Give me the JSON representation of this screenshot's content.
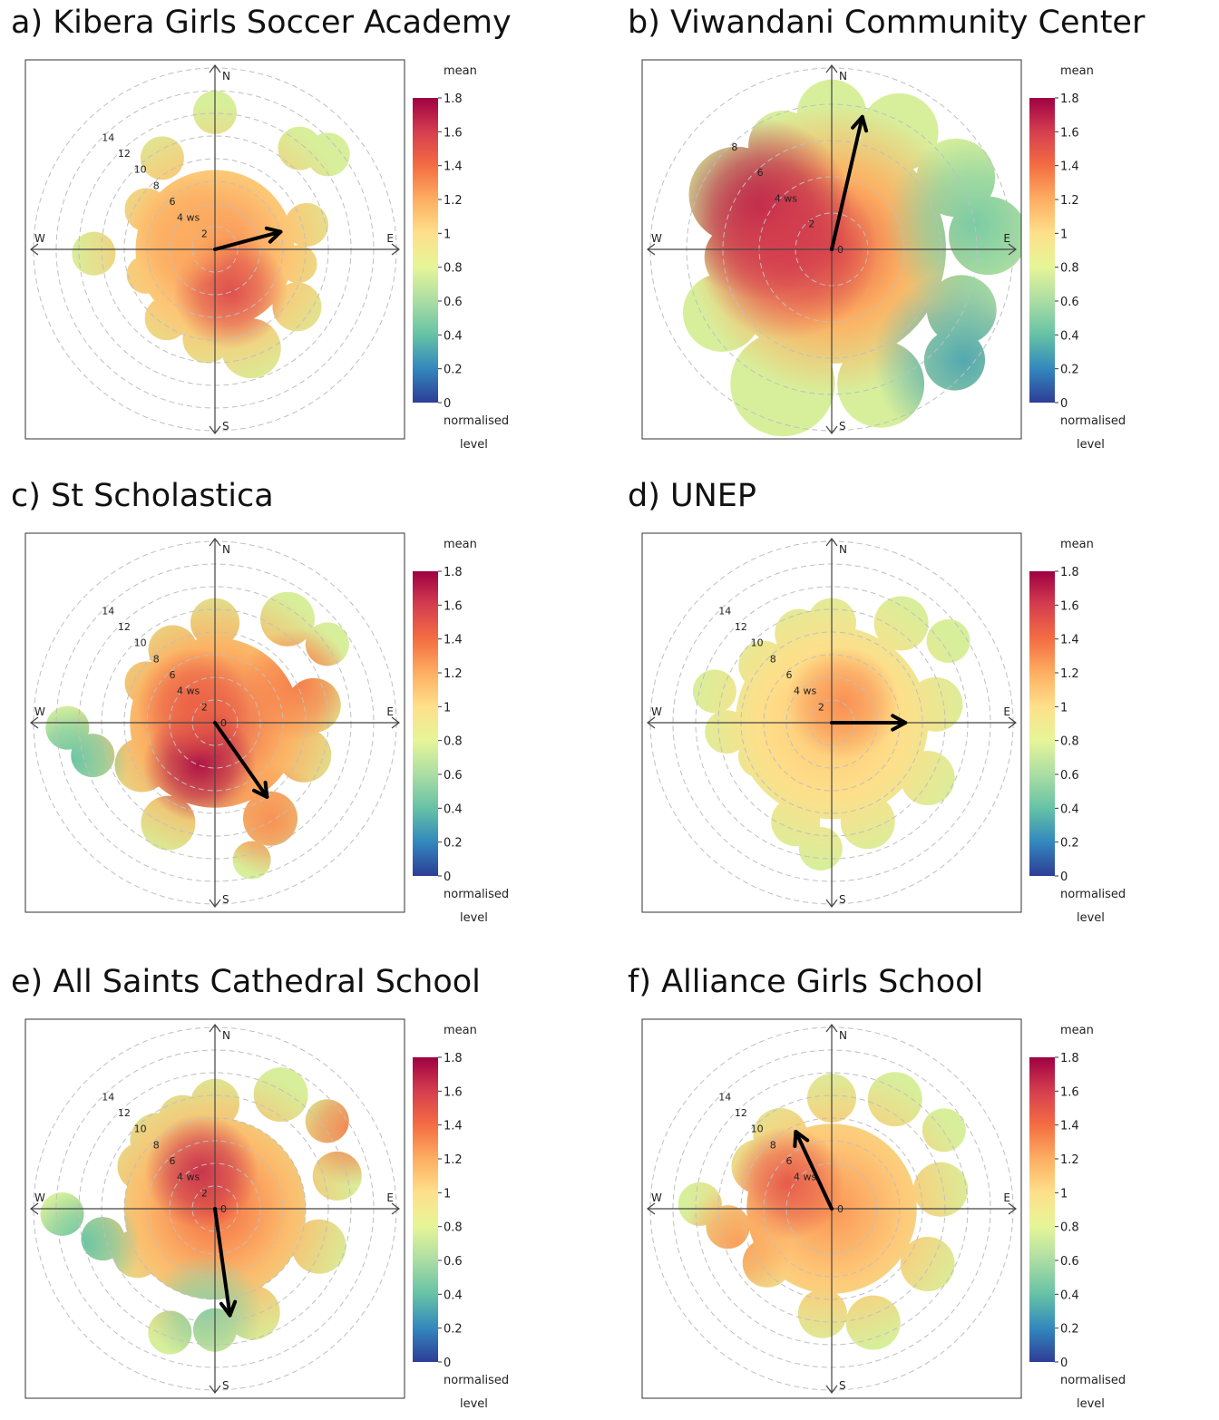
{
  "colors": {
    "scale": [
      "#2e3d96",
      "#3288bd",
      "#66c2a5",
      "#abdda4",
      "#e6f598",
      "#fee08b",
      "#fdae61",
      "#f46d43",
      "#d53e4f",
      "#9e0142"
    ],
    "arrow": "#000000",
    "grid": "#bfbfbf",
    "axis": "#444444"
  },
  "legend": {
    "top_label": "mean",
    "bottom_label_1": "normalised",
    "bottom_label_2": "level",
    "ticks": [
      "0",
      "0.2",
      "0.4",
      "0.6",
      "0.8",
      "1",
      "1.2",
      "1.4",
      "1.6",
      "1.8"
    ]
  },
  "compass": {
    "n": "N",
    "e": "E",
    "s": "S",
    "w": "W"
  },
  "chart_data": [
    {
      "type": "heatmap",
      "subtype": "polar-plot",
      "title": "a) Kibera Girls Soccer Academy",
      "colorbar": {
        "label": "mean",
        "sublabel": "normalised level",
        "range": [
          0,
          1.8
        ]
      },
      "radial_axis": {
        "label": "ws",
        "ticks": [
          2,
          4,
          6,
          8,
          10,
          12,
          14
        ],
        "max": 16
      },
      "mean_vector": {
        "direction_deg": 75,
        "speed": 6
      },
      "hotspots": [
        {
          "direction_deg": 160,
          "speed": 4,
          "value": 1.55
        },
        {
          "direction_deg": 300,
          "speed": 3,
          "value": 1.2
        }
      ]
    },
    {
      "type": "heatmap",
      "subtype": "polar-plot",
      "title": "b) Viwandani Community Center",
      "colorbar": {
        "label": "mean",
        "sublabel": "normalised level",
        "range": [
          0,
          1.8
        ]
      },
      "radial_axis": {
        "label": "ws",
        "ticks": [
          0,
          2,
          4,
          6,
          8
        ],
        "max": 10
      },
      "mean_vector": {
        "direction_deg": 13,
        "speed": 7.5
      },
      "hotspots": [
        {
          "direction_deg": 300,
          "speed": 4.5,
          "value": 1.75
        },
        {
          "direction_deg": 270,
          "speed": 2.5,
          "value": 1.6
        },
        {
          "direction_deg": 80,
          "speed": 8,
          "value": 0.45
        },
        {
          "direction_deg": 130,
          "speed": 9.5,
          "value": 0.3
        }
      ]
    },
    {
      "type": "heatmap",
      "subtype": "polar-plot",
      "title": "c) St Scholastica",
      "colorbar": {
        "label": "mean",
        "sublabel": "normalised level",
        "range": [
          0,
          1.8
        ]
      },
      "radial_axis": {
        "label": "ws",
        "ticks": [
          0,
          2,
          4,
          6,
          8,
          10,
          12,
          14
        ],
        "max": 16
      },
      "mean_vector": {
        "direction_deg": 145,
        "speed": 8
      },
      "hotspots": [
        {
          "direction_deg": 200,
          "speed": 4,
          "value": 1.75
        },
        {
          "direction_deg": 310,
          "speed": 2.5,
          "value": 1.45
        },
        {
          "direction_deg": 65,
          "speed": 8,
          "value": 1.35
        },
        {
          "direction_deg": 150,
          "speed": 10,
          "value": 1.3
        },
        {
          "direction_deg": 255,
          "speed": 13,
          "value": 0.4
        }
      ]
    },
    {
      "type": "heatmap",
      "subtype": "polar-plot",
      "title": "d) UNEP",
      "colorbar": {
        "label": "mean",
        "sublabel": "normalised level",
        "range": [
          0,
          1.8
        ]
      },
      "radial_axis": {
        "label": "ws",
        "ticks": [
          2,
          4,
          6,
          8,
          10,
          12,
          14
        ],
        "max": 16
      },
      "mean_vector": {
        "direction_deg": 90,
        "speed": 6.5
      },
      "hotspots": [
        {
          "direction_deg": 30,
          "speed": 2,
          "value": 1.3
        }
      ]
    },
    {
      "type": "heatmap",
      "subtype": "polar-plot",
      "title": "e) All Saints Cathedral School",
      "colorbar": {
        "label": "mean",
        "sublabel": "normalised level",
        "range": [
          0,
          1.8
        ]
      },
      "radial_axis": {
        "label": "ws",
        "ticks": [
          0,
          2,
          4,
          6,
          8,
          10,
          12,
          14
        ],
        "max": 16
      },
      "mean_vector": {
        "direction_deg": 172,
        "speed": 9.5
      },
      "hotspots": [
        {
          "direction_deg": 340,
          "speed": 3.5,
          "value": 1.65
        },
        {
          "direction_deg": 60,
          "speed": 14,
          "value": 1.35
        },
        {
          "direction_deg": 255,
          "speed": 12,
          "value": 0.4
        },
        {
          "direction_deg": 185,
          "speed": 9,
          "value": 0.5
        }
      ]
    },
    {
      "type": "heatmap",
      "subtype": "polar-plot",
      "title": "f) Alliance Girls School",
      "colorbar": {
        "label": "mean",
        "sublabel": "normalised level",
        "range": [
          0,
          1.8
        ]
      },
      "radial_axis": {
        "label": "ws",
        "ticks": [
          0,
          4,
          6,
          8,
          10,
          12,
          14
        ],
        "max": 16
      },
      "mean_vector": {
        "direction_deg": 335,
        "speed": 7.5
      },
      "hotspots": [
        {
          "direction_deg": 300,
          "speed": 4.5,
          "value": 1.5
        },
        {
          "direction_deg": 250,
          "speed": 9,
          "value": 1.25
        }
      ]
    }
  ]
}
